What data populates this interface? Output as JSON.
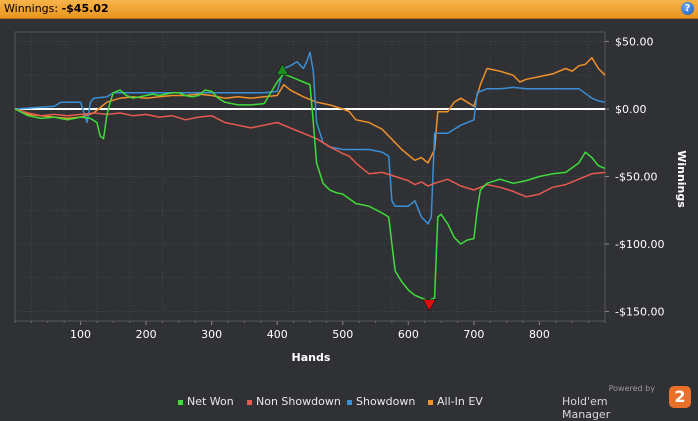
{
  "window": {
    "winnings_label": "Winnings: ",
    "winnings_value": "-$45.02",
    "help_glyph": "?"
  },
  "chart_data": {
    "type": "line",
    "xlabel": "Hands",
    "ylabel": "Winnings",
    "xlim": [
      0,
      900
    ],
    "ylim": [
      -157,
      57
    ],
    "x_ticks": [
      100,
      200,
      300,
      400,
      500,
      600,
      700,
      800
    ],
    "y_ticks": [
      50,
      0,
      -50,
      -100,
      -150
    ],
    "y_tick_labels": [
      "$50.00",
      "$0.00",
      "-$50.00",
      "-$100.00",
      "-$150.00"
    ],
    "grid": true,
    "legend_position": "bottom",
    "zero_line": 0,
    "series": [
      {
        "name": "Net Won",
        "color": "#3fdc3a",
        "points": [
          [
            0,
            0
          ],
          [
            20,
            -5
          ],
          [
            40,
            -7
          ],
          [
            60,
            -6
          ],
          [
            80,
            -8
          ],
          [
            100,
            -6
          ],
          [
            115,
            -7
          ],
          [
            125,
            -10
          ],
          [
            130,
            -20
          ],
          [
            135,
            -22
          ],
          [
            140,
            -5
          ],
          [
            145,
            5
          ],
          [
            150,
            12
          ],
          [
            160,
            14
          ],
          [
            170,
            10
          ],
          [
            180,
            8
          ],
          [
            190,
            9
          ],
          [
            200,
            10
          ],
          [
            210,
            11
          ],
          [
            220,
            10
          ],
          [
            230,
            11
          ],
          [
            240,
            12
          ],
          [
            250,
            12
          ],
          [
            260,
            10
          ],
          [
            270,
            9
          ],
          [
            280,
            10
          ],
          [
            290,
            14
          ],
          [
            300,
            13
          ],
          [
            310,
            8
          ],
          [
            320,
            5
          ],
          [
            340,
            3
          ],
          [
            360,
            3
          ],
          [
            380,
            4
          ],
          [
            400,
            20
          ],
          [
            410,
            26
          ],
          [
            420,
            24
          ],
          [
            430,
            22
          ],
          [
            440,
            20
          ],
          [
            450,
            18
          ],
          [
            455,
            -10
          ],
          [
            460,
            -40
          ],
          [
            470,
            -55
          ],
          [
            480,
            -60
          ],
          [
            490,
            -62
          ],
          [
            500,
            -63
          ],
          [
            520,
            -70
          ],
          [
            540,
            -72
          ],
          [
            560,
            -77
          ],
          [
            570,
            -80
          ],
          [
            575,
            -100
          ],
          [
            580,
            -120
          ],
          [
            590,
            -128
          ],
          [
            600,
            -134
          ],
          [
            610,
            -138
          ],
          [
            620,
            -140
          ],
          [
            630,
            -142
          ],
          [
            640,
            -140
          ],
          [
            645,
            -80
          ],
          [
            650,
            -78
          ],
          [
            660,
            -85
          ],
          [
            670,
            -95
          ],
          [
            680,
            -100
          ],
          [
            690,
            -97
          ],
          [
            700,
            -96
          ],
          [
            705,
            -75
          ],
          [
            710,
            -60
          ],
          [
            720,
            -55
          ],
          [
            740,
            -52
          ],
          [
            760,
            -55
          ],
          [
            780,
            -53
          ],
          [
            800,
            -50
          ],
          [
            820,
            -48
          ],
          [
            840,
            -47
          ],
          [
            860,
            -40
          ],
          [
            870,
            -32
          ],
          [
            880,
            -36
          ],
          [
            890,
            -42
          ],
          [
            900,
            -44
          ]
        ]
      },
      {
        "name": "Non Showdown",
        "color": "#e85a50",
        "points": [
          [
            0,
            0
          ],
          [
            20,
            -3
          ],
          [
            40,
            -5
          ],
          [
            60,
            -4
          ],
          [
            80,
            -5
          ],
          [
            100,
            -4
          ],
          [
            120,
            -3
          ],
          [
            140,
            -4
          ],
          [
            160,
            -3
          ],
          [
            180,
            -5
          ],
          [
            200,
            -4
          ],
          [
            220,
            -6
          ],
          [
            240,
            -5
          ],
          [
            260,
            -8
          ],
          [
            280,
            -6
          ],
          [
            300,
            -5
          ],
          [
            320,
            -10
          ],
          [
            340,
            -12
          ],
          [
            360,
            -14
          ],
          [
            380,
            -12
          ],
          [
            400,
            -10
          ],
          [
            420,
            -14
          ],
          [
            440,
            -18
          ],
          [
            460,
            -22
          ],
          [
            480,
            -28
          ],
          [
            500,
            -33
          ],
          [
            510,
            -35
          ],
          [
            520,
            -40
          ],
          [
            530,
            -44
          ],
          [
            540,
            -48
          ],
          [
            560,
            -47
          ],
          [
            580,
            -50
          ],
          [
            600,
            -53
          ],
          [
            610,
            -56
          ],
          [
            620,
            -54
          ],
          [
            630,
            -57
          ],
          [
            640,
            -55
          ],
          [
            660,
            -52
          ],
          [
            680,
            -57
          ],
          [
            700,
            -60
          ],
          [
            720,
            -56
          ],
          [
            740,
            -58
          ],
          [
            760,
            -61
          ],
          [
            780,
            -65
          ],
          [
            800,
            -63
          ],
          [
            820,
            -58
          ],
          [
            840,
            -56
          ],
          [
            860,
            -52
          ],
          [
            880,
            -48
          ],
          [
            900,
            -47
          ]
        ]
      },
      {
        "name": "Showdown",
        "color": "#3a8fd6",
        "points": [
          [
            0,
            0
          ],
          [
            60,
            2
          ],
          [
            70,
            5
          ],
          [
            100,
            5
          ],
          [
            110,
            -10
          ],
          [
            115,
            5
          ],
          [
            120,
            8
          ],
          [
            140,
            9
          ],
          [
            150,
            12
          ],
          [
            180,
            12
          ],
          [
            200,
            12
          ],
          [
            230,
            12
          ],
          [
            260,
            12
          ],
          [
            280,
            12
          ],
          [
            300,
            12
          ],
          [
            320,
            12
          ],
          [
            340,
            12
          ],
          [
            360,
            12
          ],
          [
            380,
            12
          ],
          [
            400,
            13
          ],
          [
            410,
            30
          ],
          [
            420,
            32
          ],
          [
            430,
            35
          ],
          [
            440,
            30
          ],
          [
            445,
            35
          ],
          [
            450,
            42
          ],
          [
            455,
            28
          ],
          [
            460,
            -10
          ],
          [
            470,
            -25
          ],
          [
            480,
            -28
          ],
          [
            500,
            -30
          ],
          [
            520,
            -30
          ],
          [
            540,
            -30
          ],
          [
            560,
            -32
          ],
          [
            570,
            -35
          ],
          [
            575,
            -68
          ],
          [
            580,
            -72
          ],
          [
            600,
            -72
          ],
          [
            610,
            -68
          ],
          [
            620,
            -80
          ],
          [
            630,
            -85
          ],
          [
            635,
            -80
          ],
          [
            640,
            -18
          ],
          [
            660,
            -18
          ],
          [
            670,
            -15
          ],
          [
            680,
            -12
          ],
          [
            700,
            -8
          ],
          [
            705,
            12
          ],
          [
            720,
            15
          ],
          [
            740,
            15
          ],
          [
            760,
            16
          ],
          [
            780,
            15
          ],
          [
            800,
            15
          ],
          [
            820,
            15
          ],
          [
            840,
            15
          ],
          [
            860,
            15
          ],
          [
            880,
            8
          ],
          [
            890,
            6
          ],
          [
            900,
            5
          ]
        ]
      },
      {
        "name": "All-In EV",
        "color": "#f0902a",
        "points": [
          [
            0,
            0
          ],
          [
            20,
            -4
          ],
          [
            40,
            -5
          ],
          [
            60,
            -6
          ],
          [
            80,
            -7
          ],
          [
            100,
            -6
          ],
          [
            120,
            -3
          ],
          [
            140,
            5
          ],
          [
            160,
            8
          ],
          [
            180,
            9
          ],
          [
            200,
            8
          ],
          [
            220,
            9
          ],
          [
            240,
            10
          ],
          [
            260,
            10
          ],
          [
            280,
            11
          ],
          [
            300,
            10
          ],
          [
            320,
            8
          ],
          [
            340,
            9
          ],
          [
            360,
            8
          ],
          [
            380,
            9
          ],
          [
            400,
            10
          ],
          [
            410,
            18
          ],
          [
            420,
            14
          ],
          [
            440,
            9
          ],
          [
            460,
            5
          ],
          [
            480,
            3
          ],
          [
            500,
            0
          ],
          [
            510,
            -2
          ],
          [
            520,
            -8
          ],
          [
            540,
            -10
          ],
          [
            560,
            -15
          ],
          [
            570,
            -20
          ],
          [
            580,
            -25
          ],
          [
            590,
            -30
          ],
          [
            600,
            -34
          ],
          [
            610,
            -38
          ],
          [
            620,
            -36
          ],
          [
            630,
            -40
          ],
          [
            640,
            -30
          ],
          [
            645,
            -2
          ],
          [
            660,
            -2
          ],
          [
            670,
            5
          ],
          [
            680,
            8
          ],
          [
            690,
            5
          ],
          [
            700,
            2
          ],
          [
            710,
            18
          ],
          [
            720,
            30
          ],
          [
            740,
            28
          ],
          [
            760,
            25
          ],
          [
            770,
            20
          ],
          [
            780,
            22
          ],
          [
            800,
            24
          ],
          [
            820,
            26
          ],
          [
            840,
            30
          ],
          [
            850,
            28
          ],
          [
            860,
            32
          ],
          [
            870,
            33
          ],
          [
            880,
            38
          ],
          [
            890,
            30
          ],
          [
            900,
            25
          ]
        ]
      }
    ],
    "markers": [
      {
        "name": "max-marker",
        "x": 408,
        "y": 29,
        "shape": "up",
        "color": "#1f8a1f"
      },
      {
        "name": "min-marker",
        "x": 632,
        "y": -145,
        "shape": "down",
        "color": "#e01010"
      }
    ]
  },
  "legend": [
    {
      "name": "Net Won",
      "color": "#3fdc3a"
    },
    {
      "name": "Non Showdown",
      "color": "#e85a50"
    },
    {
      "name": "Showdown",
      "color": "#3a8fd6"
    },
    {
      "name": "All-In EV",
      "color": "#f0902a"
    }
  ],
  "branding": {
    "powered_by": "Powered by",
    "product": "Hold'em Manager",
    "logo_glyph": "2"
  }
}
